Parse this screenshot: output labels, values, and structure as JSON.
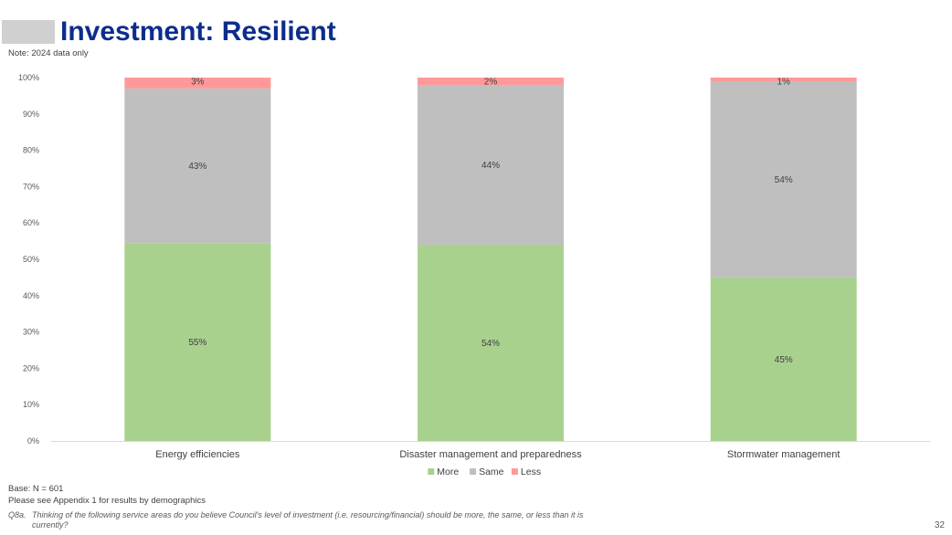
{
  "title": "Investment: Resilient",
  "note": "Note: 2024 data only",
  "footer": {
    "base": "Base: N = 601",
    "appendix": "Please see Appendix 1 for results by demographics",
    "question_number": "Q8a.",
    "question_text": "Thinking of the following service areas do you believe Council's level of investment (i.e. resourcing/financial) should be more, the same, or less than it is currently?",
    "page_number": "32"
  },
  "chart_data": {
    "type": "bar",
    "stacked": true,
    "percent_stacked": true,
    "categories": [
      "Energy efficiencies",
      "Disaster management and preparedness",
      "Stormwater management"
    ],
    "series": [
      {
        "name": "More",
        "values": [
          55,
          54,
          45
        ],
        "labels": [
          "55%",
          "54%",
          "45%"
        ],
        "color": "#a9d18e"
      },
      {
        "name": "Same",
        "values": [
          43,
          44,
          54
        ],
        "labels": [
          "43%",
          "44%",
          "54%"
        ],
        "color": "#bfbfbf"
      },
      {
        "name": "Less",
        "values": [
          3,
          2,
          1
        ],
        "labels": [
          "3%",
          "2%",
          "1%"
        ],
        "color": "#ff9999"
      }
    ],
    "ylim": [
      0,
      100
    ],
    "yticks": [
      "0%",
      "10%",
      "20%",
      "30%",
      "40%",
      "50%",
      "60%",
      "70%",
      "80%",
      "90%",
      "100%"
    ],
    "grid": false,
    "legend_position": "bottom"
  }
}
